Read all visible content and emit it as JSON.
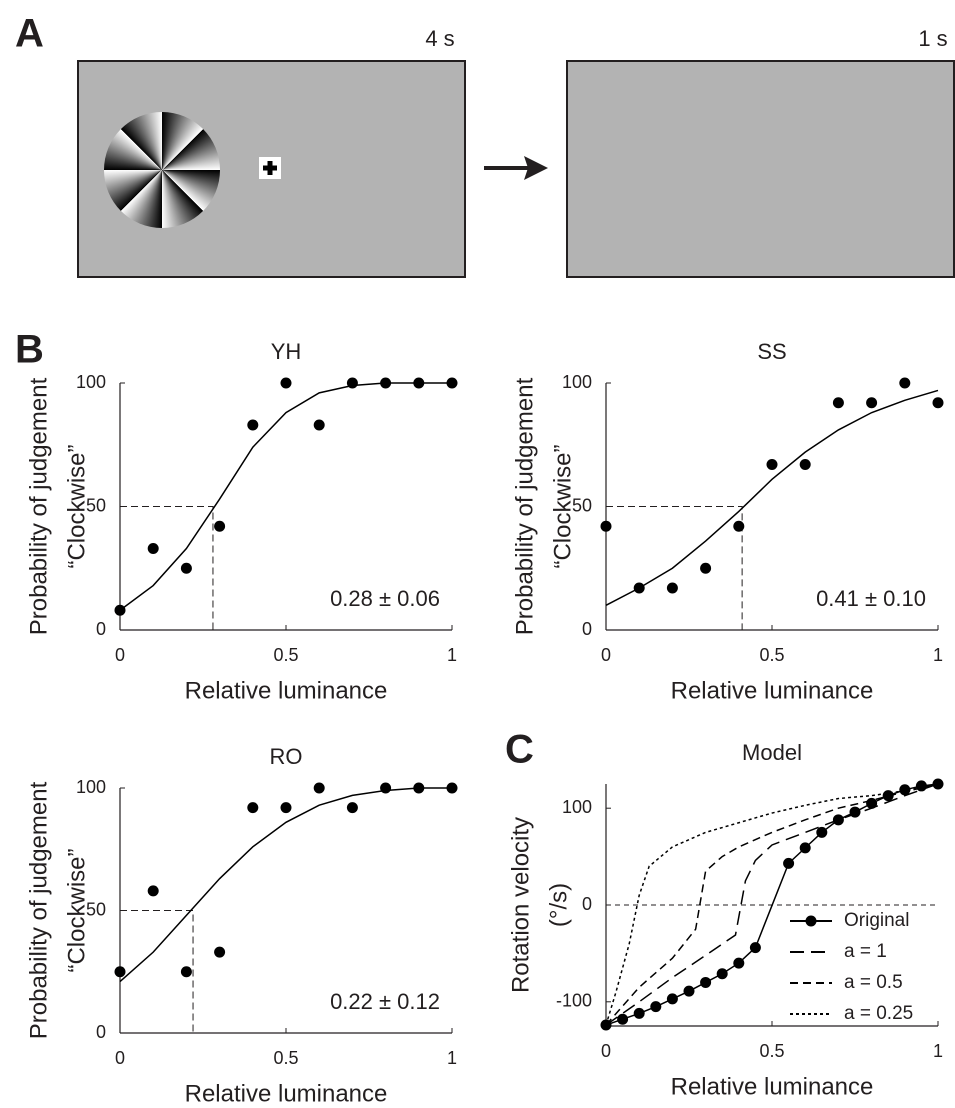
{
  "figure": {
    "panel_labels": [
      "A",
      "B",
      "C"
    ],
    "durations": [
      "4 s",
      "1 s"
    ]
  },
  "chart_data": [
    {
      "type": "scatter-fit",
      "title": "YH",
      "xlabel": "Relative luminance",
      "ylabel": [
        "Probability of judgement",
        "“Clockwise”"
      ],
      "xlim": [
        0,
        1
      ],
      "ylim": [
        0,
        100
      ],
      "xticks": [
        0,
        0.5,
        1
      ],
      "yticks": [
        0,
        50,
        100
      ],
      "threshold": 0.28,
      "threshold_level": 50,
      "annotation": "0.28 ± 0.06",
      "series": [
        {
          "style": "markers",
          "color": "#000000",
          "x": [
            0,
            0.1,
            0.2,
            0.3,
            0.4,
            0.5,
            0.6,
            0.7,
            0.8,
            0.9,
            1
          ],
          "values": [
            8,
            33,
            25,
            42,
            83,
            100,
            83,
            100,
            100,
            100,
            100
          ]
        },
        {
          "style": "line",
          "dash": "solid",
          "color": "#000000",
          "x": [
            0,
            0.1,
            0.2,
            0.3,
            0.4,
            0.5,
            0.6,
            0.7,
            0.8,
            0.9,
            1
          ],
          "values": [
            8,
            18,
            33,
            53,
            74,
            88,
            96,
            99,
            100,
            100,
            100
          ]
        }
      ]
    },
    {
      "type": "scatter-fit",
      "title": "SS",
      "xlabel": "Relative luminance",
      "ylabel": [
        "Probability of judgement",
        "“Clockwise”"
      ],
      "xlim": [
        0,
        1
      ],
      "ylim": [
        0,
        100
      ],
      "xticks": [
        0,
        0.5,
        1
      ],
      "yticks": [
        0,
        50,
        100
      ],
      "threshold": 0.41,
      "threshold_level": 50,
      "annotation": "0.41 ± 0.10",
      "series": [
        {
          "style": "markers",
          "color": "#000000",
          "x": [
            0,
            0.1,
            0.2,
            0.3,
            0.4,
            0.5,
            0.6,
            0.7,
            0.8,
            0.9,
            1
          ],
          "values": [
            42,
            17,
            17,
            25,
            42,
            67,
            67,
            92,
            92,
            100,
            92
          ]
        },
        {
          "style": "line",
          "dash": "solid",
          "color": "#000000",
          "x": [
            0,
            0.1,
            0.2,
            0.3,
            0.4,
            0.5,
            0.6,
            0.7,
            0.8,
            0.9,
            1
          ],
          "values": [
            10,
            17,
            25,
            36,
            48,
            61,
            72,
            81,
            88,
            93,
            97
          ]
        }
      ]
    },
    {
      "type": "scatter-fit",
      "title": "RO",
      "xlabel": "Relative luminance",
      "ylabel": [
        "Probability of judgement",
        "“Clockwise”"
      ],
      "xlim": [
        0,
        1
      ],
      "ylim": [
        0,
        100
      ],
      "xticks": [
        0,
        0.5,
        1
      ],
      "yticks": [
        0,
        50,
        100
      ],
      "threshold": 0.22,
      "threshold_level": 50,
      "annotation": "0.22 ± 0.12",
      "series": [
        {
          "style": "markers",
          "color": "#000000",
          "x": [
            0,
            0.1,
            0.2,
            0.3,
            0.4,
            0.5,
            0.6,
            0.7,
            0.8,
            0.9,
            1
          ],
          "values": [
            25,
            58,
            25,
            33,
            92,
            92,
            100,
            92,
            100,
            100,
            100
          ]
        },
        {
          "style": "line",
          "dash": "solid",
          "color": "#000000",
          "x": [
            0,
            0.1,
            0.2,
            0.3,
            0.4,
            0.5,
            0.6,
            0.7,
            0.8,
            0.9,
            1
          ],
          "values": [
            21,
            33,
            48,
            63,
            76,
            86,
            93,
            97,
            99,
            100,
            100
          ]
        }
      ]
    },
    {
      "type": "line",
      "title": "Model",
      "xlabel": "Relative luminance",
      "ylabel": [
        "Rotation velocity",
        "(°/s)"
      ],
      "xlim": [
        0,
        1
      ],
      "ylim": [
        -125,
        125
      ],
      "xticks": [
        0,
        0.5,
        1
      ],
      "yticks": [
        -100,
        0,
        100
      ],
      "reference_line": 0,
      "legend": "lower right",
      "series": [
        {
          "name": "Original",
          "style": "line-markers",
          "dash": "solid",
          "color": "#000000",
          "x": [
            0,
            0.05,
            0.1,
            0.15,
            0.2,
            0.25,
            0.3,
            0.35,
            0.4,
            0.45,
            0.55,
            0.6,
            0.65,
            0.7,
            0.75,
            0.8,
            0.85,
            0.9,
            0.95,
            1
          ],
          "values": [
            -124,
            -118,
            -112,
            -105,
            -97,
            -89,
            -80,
            -71,
            -60,
            -44,
            43,
            59,
            75,
            88,
            96,
            105,
            113,
            119,
            123,
            125
          ]
        },
        {
          "name": "a = 1",
          "style": "line",
          "dash": "long-dash",
          "color": "#000000",
          "x": [
            0,
            0.1,
            0.2,
            0.3,
            0.39,
            0.42,
            0.45,
            0.5,
            0.6,
            0.7,
            0.8,
            0.9,
            1
          ],
          "values": [
            -124,
            -100,
            -75,
            -52,
            -31,
            25,
            46,
            62,
            75,
            88,
            100,
            113,
            125
          ]
        },
        {
          "name": "a = 0.5",
          "style": "line",
          "dash": "dash",
          "color": "#000000",
          "x": [
            0,
            0.1,
            0.2,
            0.27,
            0.3,
            0.35,
            0.4,
            0.5,
            0.6,
            0.7,
            0.8,
            0.9,
            1
          ],
          "values": [
            -124,
            -85,
            -55,
            -25,
            35,
            50,
            60,
            75,
            88,
            100,
            108,
            117,
            125
          ]
        },
        {
          "name": "a = 0.25",
          "style": "line",
          "dash": "dot",
          "color": "#000000",
          "x": [
            0,
            0.03,
            0.07,
            0.1,
            0.13,
            0.2,
            0.3,
            0.4,
            0.5,
            0.6,
            0.7,
            0.8,
            0.9,
            1
          ],
          "values": [
            -124,
            -90,
            -40,
            10,
            40,
            60,
            75,
            85,
            95,
            103,
            110,
            113,
            118,
            125
          ]
        }
      ]
    }
  ]
}
